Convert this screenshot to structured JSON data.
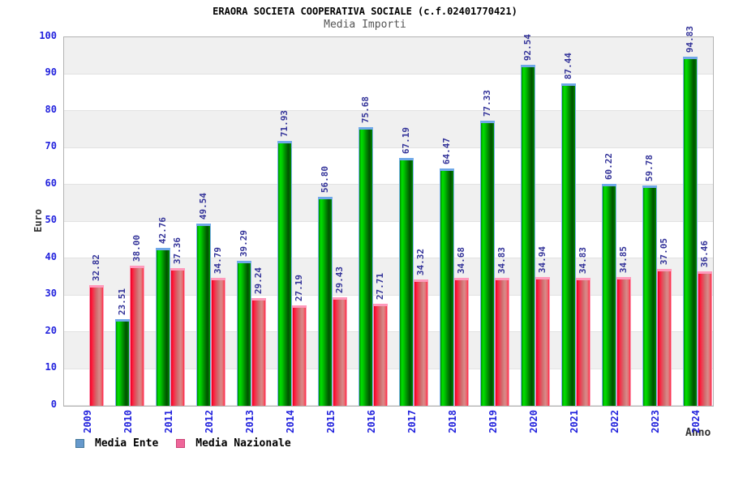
{
  "title": "ERAORA SOCIETA COOPERATIVA SOCIALE (c.f.02401770421)",
  "subtitle": "Media Importi",
  "axes": {
    "y_label": "Euro",
    "x_label": "Anno",
    "y_ticks": [
      0,
      10,
      20,
      30,
      40,
      50,
      60,
      70,
      80,
      90,
      100
    ]
  },
  "legend": [
    {
      "label": "Media Ente",
      "swatch_color": "#6699cc",
      "swatch_border": "#447799"
    },
    {
      "label": "Media Nazionale",
      "swatch_color": "#ee6699",
      "swatch_border": "#cc4477"
    }
  ],
  "colors": {
    "bar_ente_green": "#00cc00",
    "bar_ente_cap": "#6fa8e8",
    "bar_naz_red": "#ff1133",
    "bar_naz_cap": "#ff99bb",
    "axis_tick_blue": "#2222dd",
    "value_label_navy": "#333399",
    "band_gray": "#f0f0f0",
    "band_white": "#ffffff"
  },
  "chart_data": {
    "type": "bar",
    "title": "ERAORA SOCIETA COOPERATIVA SOCIALE (c.f.02401770421)",
    "subtitle": "Media Importi",
    "xlabel": "Anno",
    "ylabel": "Euro",
    "ylim": [
      0,
      100
    ],
    "grid": true,
    "legend_position": "bottom-left",
    "categories": [
      "2009",
      "2010",
      "2011",
      "2012",
      "2013",
      "2014",
      "2015",
      "2016",
      "2017",
      "2018",
      "2019",
      "2020",
      "2021",
      "2022",
      "2023",
      "2024"
    ],
    "series": [
      {
        "name": "Media Ente",
        "values": [
          null,
          23.51,
          42.76,
          49.54,
          39.29,
          71.93,
          56.8,
          75.68,
          67.19,
          64.47,
          77.33,
          92.54,
          87.44,
          60.22,
          59.78,
          94.83
        ]
      },
      {
        "name": "Media Nazionale",
        "values": [
          32.82,
          38.0,
          37.36,
          34.79,
          29.24,
          27.19,
          29.43,
          27.71,
          34.32,
          34.68,
          34.83,
          34.94,
          34.83,
          34.85,
          37.05,
          36.46
        ]
      }
    ]
  }
}
